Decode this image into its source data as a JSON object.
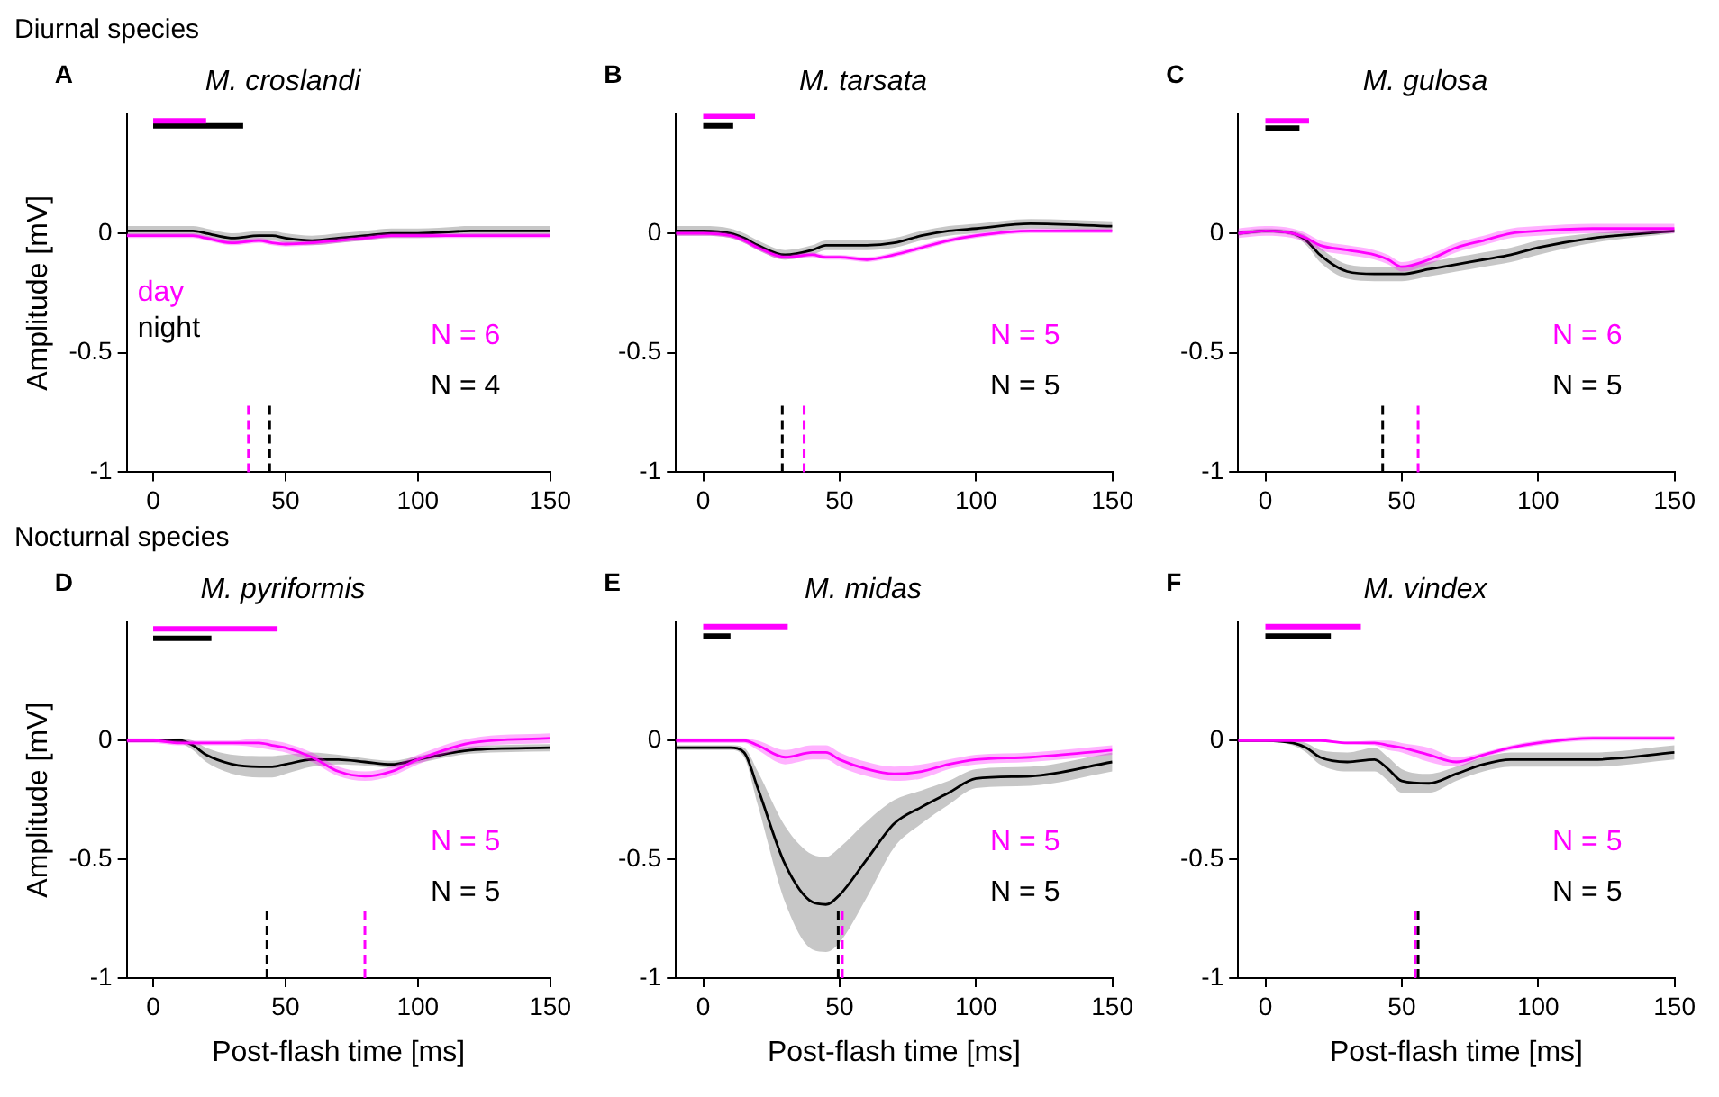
{
  "chart_data": [
    {
      "type": "line",
      "title": "M. croslandi",
      "subtitle": "Diurnal species",
      "ylabel": "Amplitude [mV]",
      "annotations": [
        "A",
        "N = 6",
        "N = 4"
      ],
      "legend": "bottom left",
      "x": [
        -10,
        0,
        10,
        15,
        20,
        30,
        40,
        45,
        50,
        60,
        70,
        80,
        90,
        100,
        120,
        150
      ],
      "xlim": [
        -10,
        150
      ],
      "xticks": [
        0,
        50,
        100,
        150
      ],
      "ylim": [
        -1,
        0.5
      ],
      "yticks": [
        -1,
        -0.5,
        0
      ],
      "series": [
        {
          "name": "day",
          "color": "#ff00ff",
          "values": [
            -0.01,
            -0.01,
            -0.01,
            -0.01,
            -0.02,
            -0.04,
            -0.03,
            -0.04,
            -0.045,
            -0.04,
            -0.03,
            -0.02,
            -0.01,
            -0.01,
            -0.01,
            -0.01
          ],
          "lower": [
            -0.02,
            -0.02,
            -0.02,
            -0.02,
            -0.03,
            -0.05,
            -0.04,
            -0.05,
            -0.055,
            -0.05,
            -0.04,
            -0.03,
            -0.02,
            -0.02,
            -0.02,
            -0.02
          ],
          "upper": [
            0,
            0,
            0,
            0,
            -0.01,
            -0.03,
            -0.02,
            -0.03,
            -0.035,
            -0.03,
            -0.02,
            -0.01,
            0,
            0,
            0,
            0
          ]
        },
        {
          "name": "night",
          "color": "#000000",
          "values": [
            0.01,
            0.01,
            0.01,
            0.01,
            0,
            -0.02,
            -0.01,
            -0.01,
            -0.02,
            -0.03,
            -0.02,
            -0.01,
            0,
            0,
            0.01,
            0.01
          ],
          "lower": [
            -0.01,
            -0.01,
            -0.01,
            -0.01,
            -0.02,
            -0.04,
            -0.03,
            -0.03,
            -0.04,
            -0.05,
            -0.04,
            -0.03,
            -0.02,
            -0.02,
            -0.01,
            -0.01
          ],
          "upper": [
            0.03,
            0.03,
            0.03,
            0.03,
            0.02,
            0,
            0.01,
            0.01,
            0,
            -0.01,
            0,
            0.01,
            0.02,
            0.02,
            0.03,
            0.03
          ]
        },
        {
          "color": "#ff00ff",
          "x": [
            0,
            20
          ],
          "values": [
            0.47,
            0.47
          ]
        },
        {
          "color": "#000000",
          "x": [
            0,
            34
          ],
          "values": [
            0.45,
            0.45
          ]
        }
      ],
      "ref_lines": [
        {
          "axis": "x",
          "value": 36,
          "color": "#ff00ff",
          "line_style": "dashed"
        },
        {
          "axis": "x",
          "value": 44,
          "color": "#000000",
          "line_style": "dashed"
        }
      ]
    },
    {
      "type": "line",
      "title": "M. tarsata",
      "annotations": [
        "B",
        "N = 5",
        "N = 5"
      ],
      "x": [
        -10,
        0,
        10,
        15,
        20,
        30,
        40,
        45,
        50,
        60,
        70,
        80,
        90,
        100,
        120,
        150
      ],
      "xlim": [
        -10,
        150
      ],
      "xticks": [
        0,
        50,
        100,
        150
      ],
      "ylim": [
        -1,
        0.5
      ],
      "yticks": [
        -1,
        -0.5,
        0
      ],
      "series": [
        {
          "color": "#ff00ff",
          "values": [
            0,
            0,
            -0.01,
            -0.03,
            -0.06,
            -0.1,
            -0.09,
            -0.1,
            -0.1,
            -0.11,
            -0.09,
            -0.06,
            -0.03,
            -0.01,
            0.01,
            0.01
          ],
          "lower": [
            -0.01,
            -0.01,
            -0.02,
            -0.04,
            -0.07,
            -0.11,
            -0.1,
            -0.11,
            -0.11,
            -0.12,
            -0.1,
            -0.07,
            -0.04,
            -0.02,
            0,
            0
          ],
          "upper": [
            0.01,
            0.01,
            0,
            -0.02,
            -0.05,
            -0.09,
            -0.08,
            -0.09,
            -0.09,
            -0.1,
            -0.08,
            -0.05,
            -0.02,
            0,
            0.02,
            0.02
          ]
        },
        {
          "color": "#000000",
          "values": [
            0.01,
            0.01,
            0,
            -0.02,
            -0.05,
            -0.09,
            -0.07,
            -0.05,
            -0.05,
            -0.05,
            -0.04,
            -0.01,
            0.01,
            0.02,
            0.04,
            0.03
          ],
          "lower": [
            -0.01,
            -0.01,
            -0.02,
            -0.04,
            -0.07,
            -0.11,
            -0.09,
            -0.07,
            -0.07,
            -0.07,
            -0.06,
            -0.03,
            -0.01,
            0,
            0.02,
            0.01
          ],
          "upper": [
            0.03,
            0.03,
            0.02,
            0,
            -0.03,
            -0.07,
            -0.05,
            -0.03,
            -0.03,
            -0.03,
            -0.02,
            0.01,
            0.03,
            0.04,
            0.06,
            0.05
          ]
        },
        {
          "color": "#ff00ff",
          "x": [
            0,
            19
          ],
          "values": [
            0.49,
            0.49
          ]
        },
        {
          "color": "#000000",
          "x": [
            0,
            11
          ],
          "values": [
            0.45,
            0.45
          ]
        }
      ],
      "ref_lines": [
        {
          "axis": "x",
          "value": 37,
          "color": "#ff00ff",
          "line_style": "dashed"
        },
        {
          "axis": "x",
          "value": 29,
          "color": "#000000",
          "line_style": "dashed"
        }
      ]
    },
    {
      "type": "line",
      "title": "M. gulosa",
      "annotations": [
        "C",
        "N = 6",
        "N = 5"
      ],
      "x": [
        -10,
        0,
        10,
        15,
        20,
        30,
        40,
        45,
        50,
        60,
        70,
        80,
        90,
        100,
        120,
        150
      ],
      "xlim": [
        -10,
        150
      ],
      "xticks": [
        0,
        50,
        100,
        150
      ],
      "ylim": [
        -1,
        0.5
      ],
      "yticks": [
        -1,
        -0.5,
        0
      ],
      "series": [
        {
          "color": "#ff00ff",
          "values": [
            0,
            0.01,
            0,
            -0.02,
            -0.05,
            -0.07,
            -0.09,
            -0.11,
            -0.14,
            -0.11,
            -0.06,
            -0.03,
            0,
            0.01,
            0.02,
            0.02
          ],
          "lower": [
            -0.02,
            -0.01,
            -0.02,
            -0.04,
            -0.07,
            -0.09,
            -0.11,
            -0.13,
            -0.16,
            -0.13,
            -0.08,
            -0.05,
            -0.02,
            -0.01,
            0,
            0
          ],
          "upper": [
            0.02,
            0.03,
            0.02,
            0,
            -0.03,
            -0.05,
            -0.07,
            -0.09,
            -0.12,
            -0.09,
            -0.04,
            -0.01,
            0.02,
            0.03,
            0.04,
            0.04
          ]
        },
        {
          "color": "#000000",
          "values": [
            0,
            0.01,
            0,
            -0.03,
            -0.09,
            -0.16,
            -0.17,
            -0.17,
            -0.17,
            -0.15,
            -0.13,
            -0.11,
            -0.09,
            -0.06,
            -0.02,
            0.01
          ],
          "lower": [
            -0.01,
            0,
            -0.01,
            -0.05,
            -0.12,
            -0.19,
            -0.2,
            -0.2,
            -0.2,
            -0.18,
            -0.16,
            -0.14,
            -0.12,
            -0.09,
            -0.04,
            0
          ],
          "upper": [
            0.01,
            0.02,
            0.01,
            -0.01,
            -0.06,
            -0.13,
            -0.14,
            -0.14,
            -0.14,
            -0.12,
            -0.1,
            -0.08,
            -0.06,
            -0.03,
            0,
            0.02
          ]
        },
        {
          "color": "#ff00ff",
          "x": [
            0,
            16
          ],
          "values": [
            0.47,
            0.47
          ]
        },
        {
          "color": "#000000",
          "x": [
            0,
            12.5
          ],
          "values": [
            0.44,
            0.44
          ]
        }
      ],
      "ref_lines": [
        {
          "axis": "x",
          "value": 56,
          "color": "#ff00ff",
          "line_style": "dashed"
        },
        {
          "axis": "x",
          "value": 43,
          "color": "#000000",
          "line_style": "dashed"
        }
      ]
    },
    {
      "type": "line",
      "title": "M. pyriformis",
      "subtitle": "Nocturnal species",
      "xlabel": "Post-flash time [ms]",
      "ylabel": "Amplitude [mV]",
      "annotations": [
        "D",
        "N = 5",
        "N = 5"
      ],
      "x": [
        -10,
        0,
        10,
        15,
        20,
        30,
        40,
        45,
        50,
        60,
        70,
        80,
        90,
        100,
        120,
        150
      ],
      "xlim": [
        -10,
        150
      ],
      "xticks": [
        0,
        50,
        100,
        150
      ],
      "ylim": [
        -1,
        0.5
      ],
      "yticks": [
        -1,
        -0.5,
        0
      ],
      "series": [
        {
          "color": "#ff00ff",
          "values": [
            0,
            0,
            -0.01,
            -0.01,
            -0.01,
            -0.01,
            -0.01,
            -0.02,
            -0.03,
            -0.07,
            -0.13,
            -0.15,
            -0.13,
            -0.08,
            -0.01,
            0.01
          ],
          "lower": [
            -0.01,
            -0.01,
            -0.02,
            -0.02,
            -0.02,
            -0.02,
            -0.03,
            -0.04,
            -0.05,
            -0.09,
            -0.15,
            -0.17,
            -0.15,
            -0.1,
            -0.03,
            -0.01
          ],
          "upper": [
            0.01,
            0.01,
            0,
            0,
            0,
            0,
            0.01,
            0,
            -0.01,
            -0.05,
            -0.11,
            -0.13,
            -0.11,
            -0.06,
            0.01,
            0.03
          ]
        },
        {
          "color": "#000000",
          "values": [
            0,
            0,
            0,
            -0.02,
            -0.06,
            -0.1,
            -0.11,
            -0.11,
            -0.1,
            -0.08,
            -0.08,
            -0.09,
            -0.1,
            -0.08,
            -0.04,
            -0.03
          ],
          "lower": [
            -0.005,
            -0.005,
            -0.01,
            -0.04,
            -0.09,
            -0.14,
            -0.155,
            -0.155,
            -0.14,
            -0.11,
            -0.1,
            -0.105,
            -0.115,
            -0.095,
            -0.055,
            -0.045
          ],
          "upper": [
            0.005,
            0.005,
            0.01,
            0,
            -0.03,
            -0.06,
            -0.065,
            -0.065,
            -0.06,
            -0.05,
            -0.06,
            -0.075,
            -0.085,
            -0.065,
            -0.025,
            -0.015
          ]
        },
        {
          "color": "#ff00ff",
          "x": [
            0,
            47
          ],
          "values": [
            0.47,
            0.47
          ]
        },
        {
          "color": "#000000",
          "x": [
            0,
            22
          ],
          "values": [
            0.43,
            0.43
          ]
        }
      ],
      "ref_lines": [
        {
          "axis": "x",
          "value": 80,
          "color": "#ff00ff",
          "line_style": "dashed"
        },
        {
          "axis": "x",
          "value": 43,
          "color": "#000000",
          "line_style": "dashed"
        }
      ]
    },
    {
      "type": "line",
      "title": "M. midas",
      "xlabel": "Post-flash time [ms]",
      "annotations": [
        "E",
        "N = 5",
        "N = 5"
      ],
      "x": [
        -10,
        0,
        10,
        15,
        20,
        30,
        40,
        45,
        50,
        60,
        70,
        80,
        90,
        100,
        120,
        150
      ],
      "xlim": [
        -10,
        150
      ],
      "xticks": [
        0,
        50,
        100,
        150
      ],
      "ylim": [
        -1,
        0.5
      ],
      "yticks": [
        -1,
        -0.5,
        0
      ],
      "series": [
        {
          "color": "#ff00ff",
          "values": [
            0,
            0,
            0,
            0,
            -0.02,
            -0.07,
            -0.05,
            -0.05,
            -0.08,
            -0.12,
            -0.14,
            -0.13,
            -0.1,
            -0.08,
            -0.07,
            -0.04
          ],
          "lower": [
            -0.01,
            -0.01,
            -0.01,
            -0.01,
            -0.04,
            -0.1,
            -0.08,
            -0.08,
            -0.11,
            -0.15,
            -0.17,
            -0.16,
            -0.12,
            -0.1,
            -0.09,
            -0.06
          ],
          "upper": [
            0.01,
            0.01,
            0.01,
            0.01,
            0,
            -0.04,
            -0.02,
            -0.02,
            -0.05,
            -0.09,
            -0.11,
            -0.1,
            -0.08,
            -0.06,
            -0.05,
            -0.02
          ]
        },
        {
          "color": "#000000",
          "values": [
            -0.03,
            -0.03,
            -0.03,
            -0.05,
            -0.2,
            -0.52,
            -0.68,
            -0.69,
            -0.65,
            -0.5,
            -0.35,
            -0.28,
            -0.22,
            -0.16,
            -0.15,
            -0.09
          ],
          "lower": [
            -0.04,
            -0.04,
            -0.04,
            -0.07,
            -0.27,
            -0.68,
            -0.88,
            -0.89,
            -0.85,
            -0.66,
            -0.45,
            -0.35,
            -0.27,
            -0.2,
            -0.19,
            -0.13
          ],
          "upper": [
            -0.02,
            -0.02,
            -0.02,
            -0.03,
            -0.13,
            -0.36,
            -0.48,
            -0.49,
            -0.45,
            -0.34,
            -0.25,
            -0.21,
            -0.17,
            -0.12,
            -0.11,
            -0.05
          ]
        },
        {
          "color": "#ff00ff",
          "x": [
            0,
            31
          ],
          "values": [
            0.48,
            0.48
          ]
        },
        {
          "color": "#000000",
          "x": [
            0,
            10
          ],
          "values": [
            0.44,
            0.44
          ]
        }
      ],
      "ref_lines": [
        {
          "axis": "x",
          "value": 51,
          "color": "#ff00ff",
          "line_style": "dashed"
        },
        {
          "axis": "x",
          "value": 49.5,
          "color": "#000000",
          "line_style": "dashed"
        }
      ]
    },
    {
      "type": "line",
      "title": "M. vindex",
      "xlabel": "Post-flash time [ms]",
      "annotations": [
        "F",
        "N = 5",
        "N = 5"
      ],
      "x": [
        -10,
        0,
        10,
        15,
        20,
        30,
        40,
        45,
        50,
        60,
        70,
        80,
        90,
        100,
        120,
        150
      ],
      "xlim": [
        -10,
        150
      ],
      "xticks": [
        0,
        50,
        100,
        150
      ],
      "ylim": [
        -1,
        0.5
      ],
      "yticks": [
        -1,
        -0.5,
        0
      ],
      "series": [
        {
          "color": "#ff00ff",
          "values": [
            0,
            0,
            0,
            0,
            0,
            -0.01,
            -0.01,
            -0.02,
            -0.03,
            -0.06,
            -0.09,
            -0.06,
            -0.03,
            -0.01,
            0.01,
            0.01
          ],
          "lower": [
            -0.005,
            -0.005,
            -0.005,
            -0.005,
            -0.005,
            -0.015,
            -0.02,
            -0.04,
            -0.05,
            -0.09,
            -0.11,
            -0.07,
            -0.04,
            -0.02,
            0,
            0
          ],
          "upper": [
            0.005,
            0.005,
            0.005,
            0.005,
            0.005,
            -0.005,
            0,
            0,
            -0.01,
            -0.03,
            -0.07,
            -0.05,
            -0.02,
            0,
            0.02,
            0.02
          ]
        },
        {
          "color": "#000000",
          "values": [
            0,
            0,
            -0.01,
            -0.03,
            -0.07,
            -0.09,
            -0.08,
            -0.12,
            -0.17,
            -0.18,
            -0.14,
            -0.1,
            -0.08,
            -0.08,
            -0.08,
            -0.05
          ],
          "lower": [
            -0.005,
            -0.005,
            -0.02,
            -0.05,
            -0.1,
            -0.13,
            -0.13,
            -0.17,
            -0.22,
            -0.22,
            -0.17,
            -0.13,
            -0.11,
            -0.11,
            -0.11,
            -0.08
          ],
          "upper": [
            0.005,
            0.005,
            0,
            -0.01,
            -0.04,
            -0.05,
            -0.03,
            -0.07,
            -0.12,
            -0.14,
            -0.11,
            -0.07,
            -0.05,
            -0.05,
            -0.05,
            -0.02
          ]
        },
        {
          "color": "#ff00ff",
          "x": [
            0,
            35
          ],
          "values": [
            0.48,
            0.48
          ]
        },
        {
          "color": "#000000",
          "x": [
            0,
            24
          ],
          "values": [
            0.44,
            0.44
          ]
        }
      ],
      "ref_lines": [
        {
          "axis": "x",
          "value": 55,
          "color": "#ff00ff",
          "line_style": "dashed"
        },
        {
          "axis": "x",
          "value": 56,
          "color": "#000000",
          "line_style": "dashed"
        }
      ]
    }
  ]
}
